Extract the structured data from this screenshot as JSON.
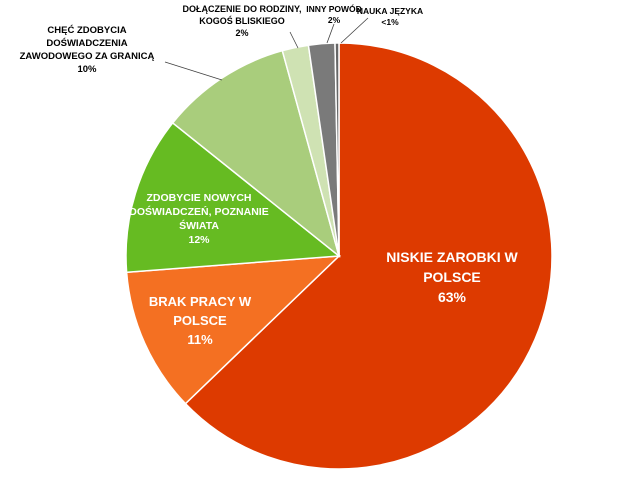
{
  "chart_data": {
    "type": "pie",
    "title": "",
    "start_angle_deg": 0,
    "direction": "clockwise",
    "slices": [
      {
        "label_lines": [
          "NISKIE ZAROBKI W",
          "POLSCE"
        ],
        "value_label": "63%",
        "value": 63,
        "color": "#dd3a00"
      },
      {
        "label_lines": [
          "BRAK PRACY W",
          "POLSCE"
        ],
        "value_label": "11%",
        "value": 11,
        "color": "#f47022"
      },
      {
        "label_lines": [
          "ZDOBYCIE NOWYCH",
          "DOŚWIADCZEŃ, POZNANIE",
          "ŚWIATA"
        ],
        "value_label": "12%",
        "value": 12,
        "color": "#66bb22"
      },
      {
        "label_lines": [
          "CHĘĆ ZDOBYCIA",
          "DOŚWIADCZENIA",
          "ZAWODOWEGO ZA GRANICĄ"
        ],
        "value_label": "10%",
        "value": 10,
        "color": "#a9cd7c"
      },
      {
        "label_lines": [
          "DOŁĄCZENIE DO RODZINY,",
          "KOGOŚ BLISKIEGO"
        ],
        "value_label": "2%",
        "value": 2,
        "color": "#cfe2b3"
      },
      {
        "label_lines": [
          "INNY POWÓD"
        ],
        "value_label": "2%",
        "value": 2,
        "color": "#7a7a7a"
      },
      {
        "label_lines": [
          "NAUKA JĘZYKA"
        ],
        "value_label": "<1%",
        "value": 0.3,
        "color": "#666666"
      }
    ]
  }
}
